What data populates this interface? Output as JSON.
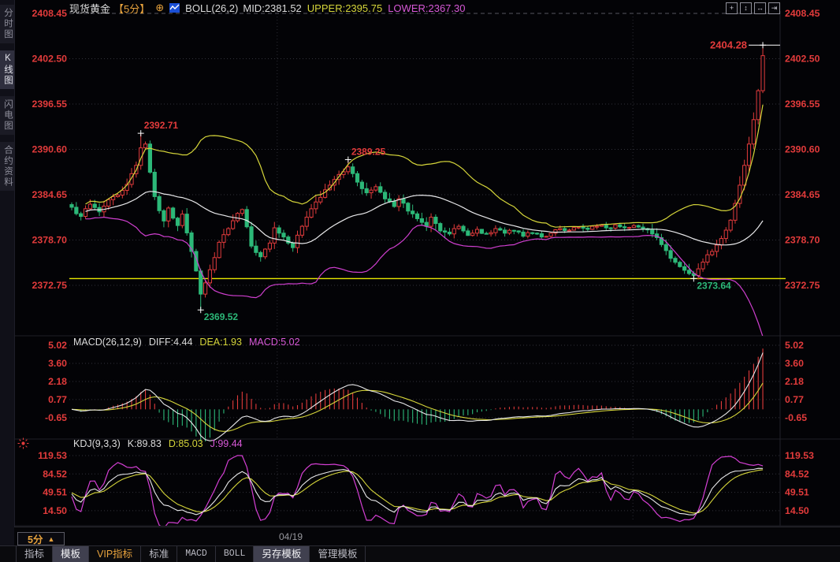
{
  "sidebar": {
    "items": [
      {
        "label": "分时图",
        "selected": false
      },
      {
        "label": "K线图",
        "selected": true
      },
      {
        "label": "闪电图",
        "selected": false
      },
      {
        "label": "合约资料",
        "selected": false
      }
    ]
  },
  "header": {
    "instrument": "现货黄金",
    "timeframe": "【5分】",
    "expand_icon": "⊕",
    "boll_label": "BOLL(26,2)",
    "mid_value": "MID:2381.52",
    "upper_value": "UPPER:2395.75",
    "lower_value": "LOWER:2367.30",
    "tool_icons": [
      {
        "name": "pan-icon",
        "glyph": "+"
      },
      {
        "name": "fit-vertical-icon",
        "glyph": "↕"
      },
      {
        "name": "fit-horizontal-icon",
        "glyph": "↔"
      },
      {
        "name": "pop-out-icon",
        "glyph": "⇥"
      }
    ]
  },
  "bottom": {
    "timeframe_button": "5分",
    "triangle": "▲",
    "date_label": "04/19"
  },
  "tabs": [
    {
      "label": "指标",
      "active": false
    },
    {
      "label": "模板",
      "active": true
    },
    {
      "label": "VIP指标",
      "active": false
    },
    {
      "label": "标准",
      "active": false
    },
    {
      "label": "MACD",
      "active": false
    },
    {
      "label": "BOLL",
      "active": false
    },
    {
      "label": "另存模板",
      "active": true
    },
    {
      "label": "管理模板",
      "active": false
    }
  ],
  "chart_data": [
    {
      "type": "candlestick",
      "panel": "main",
      "title": "现货黄金 5分 K线图",
      "y_ticks": [
        "2408.45",
        "2402.50",
        "2396.55",
        "2390.60",
        "2384.65",
        "2378.70",
        "2372.75"
      ],
      "num_candles": 151,
      "close_anchors": [
        [
          0,
          2383.0
        ],
        [
          2,
          2381.8
        ],
        [
          4,
          2383.4
        ],
        [
          6,
          2382.4
        ],
        [
          8,
          2384.0
        ],
        [
          10,
          2384.6
        ],
        [
          12,
          2386.0
        ],
        [
          14,
          2388.5
        ],
        [
          15,
          2390.8
        ],
        [
          16,
          2391.3
        ],
        [
          17,
          2387.6
        ],
        [
          18,
          2384.4
        ],
        [
          20,
          2381.2
        ],
        [
          21,
          2382.9
        ],
        [
          23,
          2380.6
        ],
        [
          24,
          2382.1
        ],
        [
          26,
          2377.2
        ],
        [
          28,
          2371.6
        ],
        [
          30,
          2374.8
        ],
        [
          32,
          2378.4
        ],
        [
          34,
          2380.2
        ],
        [
          36,
          2382.2
        ],
        [
          37,
          2382.7
        ],
        [
          39,
          2377.9
        ],
        [
          41,
          2376.5
        ],
        [
          43,
          2378.3
        ],
        [
          44,
          2380.3
        ],
        [
          46,
          2379.1
        ],
        [
          48,
          2377.7
        ],
        [
          50,
          2380.5
        ],
        [
          52,
          2382.8
        ],
        [
          54,
          2384.3
        ],
        [
          56,
          2385.9
        ],
        [
          58,
          2387.3
        ],
        [
          60,
          2388.3
        ],
        [
          62,
          2386.3
        ],
        [
          64,
          2384.9
        ],
        [
          66,
          2385.7
        ],
        [
          68,
          2384.1
        ],
        [
          70,
          2383.1
        ],
        [
          71,
          2384.1
        ],
        [
          73,
          2382.5
        ],
        [
          75,
          2381.5
        ],
        [
          77,
          2380.5
        ],
        [
          78,
          2381.7
        ],
        [
          80,
          2379.9
        ],
        [
          82,
          2379.5
        ],
        [
          84,
          2380.5
        ],
        [
          86,
          2379.3
        ],
        [
          88,
          2380.1
        ],
        [
          90,
          2379.5
        ],
        [
          92,
          2380.2
        ],
        [
          94,
          2379.6
        ],
        [
          96,
          2379.9
        ],
        [
          98,
          2379.2
        ],
        [
          100,
          2379.6
        ],
        [
          102,
          2379.1
        ],
        [
          104,
          2379.6
        ],
        [
          106,
          2380.2
        ],
        [
          108,
          2380.0
        ],
        [
          110,
          2380.4
        ],
        [
          112,
          2380.1
        ],
        [
          114,
          2380.5
        ],
        [
          116,
          2380.3
        ],
        [
          118,
          2380.7
        ],
        [
          120,
          2380.3
        ],
        [
          122,
          2380.6
        ],
        [
          124,
          2380.2
        ],
        [
          126,
          2379.5
        ],
        [
          128,
          2378.1
        ],
        [
          130,
          2376.3
        ],
        [
          132,
          2375.2
        ],
        [
          134,
          2374.3
        ],
        [
          135,
          2374.05
        ],
        [
          137,
          2375.8
        ],
        [
          139,
          2377.2
        ],
        [
          141,
          2378.9
        ],
        [
          143,
          2381.3
        ],
        [
          144,
          2383.5
        ],
        [
          145,
          2385.9
        ],
        [
          146,
          2388.5
        ],
        [
          147,
          2391.3
        ],
        [
          148,
          2394.5
        ],
        [
          149,
          2398.3
        ],
        [
          150,
          2402.9
        ]
      ],
      "forced_highs": {
        "15": 2392.71,
        "60": 2389.25,
        "150": 2404.28
      },
      "forced_lows": {
        "28": 2369.52,
        "135": 2373.64
      },
      "hline": {
        "value": 2373.64,
        "color": "#e8e800"
      },
      "boll": {
        "period": 26,
        "mult": 2,
        "mid_color": "#e8e8ea",
        "upper_color": "#d6d63a",
        "lower_color": "#cf3fcf"
      },
      "annotations": [
        {
          "text": "2392.71",
          "index": 15,
          "value": 2392.71,
          "kind": "high",
          "color": "#e23b3b"
        },
        {
          "text": "2369.52",
          "index": 28,
          "value": 2369.52,
          "kind": "low",
          "color": "#2cb878"
        },
        {
          "text": "2389.25",
          "index": 60,
          "value": 2389.25,
          "kind": "high",
          "color": "#e23b3b"
        },
        {
          "text": "2373.64",
          "index": 135,
          "value": 2373.64,
          "kind": "low",
          "color": "#2cb878"
        },
        {
          "text": "2404.28",
          "index": 150,
          "value": 2404.28,
          "kind": "high-line",
          "color": "#e23b3b"
        }
      ],
      "v_gridline_indices": [
        44.6,
        121.8
      ],
      "x_label": "04/19",
      "up_color": "#e23b3b",
      "down_color": "#2cb878"
    },
    {
      "type": "line",
      "panel": "macd",
      "label": "MACD(26,12,9)",
      "diff_text": "DIFF:4.44",
      "dea_text": "DEA:1.93",
      "macd_text": "MACD:5.02",
      "final": {
        "diff": 4.44,
        "dea": 1.93,
        "macd": 5.02
      },
      "params": {
        "slow": 26,
        "fast": 12,
        "signal": 9
      },
      "y_ticks": [
        "5.02",
        "3.60",
        "2.18",
        "0.77",
        "-0.65"
      ],
      "series_note": "derived from candles",
      "colors": {
        "diff": "#e8e8ea",
        "dea": "#d6d63a",
        "hist_pos": "#e23b3b",
        "hist_neg": "#2cb878"
      }
    },
    {
      "type": "line",
      "panel": "kdj",
      "label": "KDJ(9,3,3)",
      "k_text": "K:89.83",
      "d_text": "D:85.03",
      "j_text": "J:99.44",
      "final": {
        "k": 89.83,
        "d": 85.03,
        "j": 99.44
      },
      "params": {
        "n": 9,
        "m1": 3,
        "m2": 3
      },
      "y_ticks": [
        "119.53",
        "84.52",
        "49.51",
        "14.50"
      ],
      "series_note": "derived from candles",
      "colors": {
        "k": "#e8e8ea",
        "d": "#d6d63a",
        "j": "#d43fd4"
      }
    }
  ]
}
